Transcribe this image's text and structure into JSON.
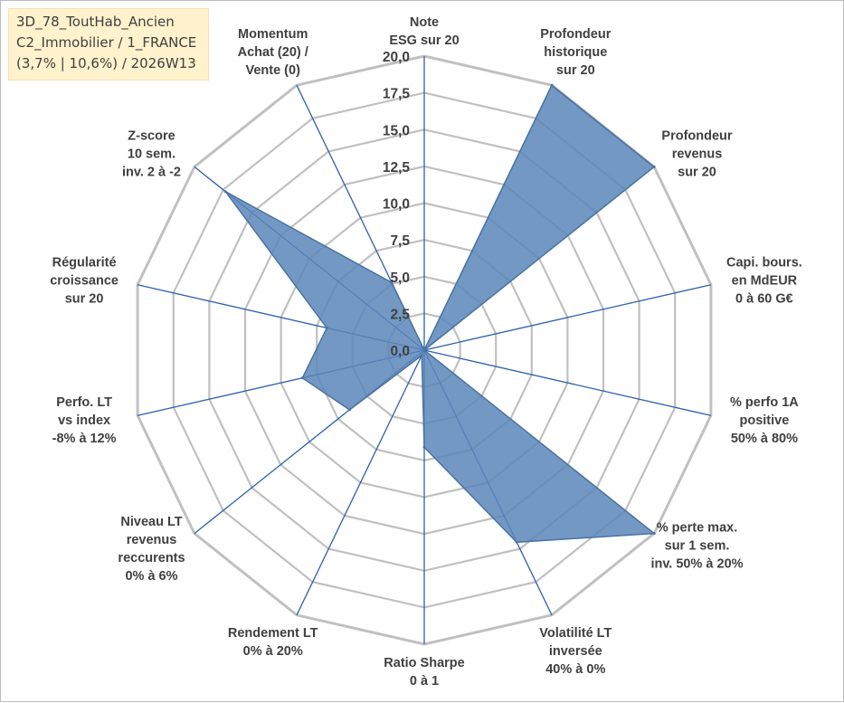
{
  "title_box": {
    "line1": "3D_78_ToutHab_Ancien",
    "line2": "C2_Immobilier / 1_FRANCE",
    "line3": "(3,7% | 10,6%) / 2026W13"
  },
  "chart_data": {
    "type": "radar",
    "rmin": 0,
    "rmax": 20,
    "ticks": [
      "0,0",
      "2,5",
      "5,0",
      "7,5",
      "10,0",
      "12,5",
      "15,0",
      "17,5",
      "20,0"
    ],
    "tick_values": [
      0,
      2.5,
      5,
      7.5,
      10,
      12.5,
      15,
      17.5,
      20
    ],
    "grid_steps": 8,
    "categories": [
      [
        "Note",
        "ESG sur 20"
      ],
      [
        "Profondeur",
        "historique",
        "sur 20"
      ],
      [
        "Profondeur",
        "revenus",
        "sur 20"
      ],
      [
        "Capi. bours.",
        "en MdEUR",
        "0 à 60 G€"
      ],
      [
        "% perfo 1A",
        "positive",
        "50% à 80%"
      ],
      [
        "% perte max.",
        "sur 1 sem.",
        "inv. 50% à 20%"
      ],
      [
        "Volatilité LT",
        "inversée",
        "40% à 0%"
      ],
      [
        "Ratio Sharpe",
        "0 à 1"
      ],
      [
        "Rendement LT",
        "0% à 20%"
      ],
      [
        "Niveau LT",
        "revenus",
        "reccurents",
        "0% à 6%"
      ],
      [
        "Perfo. LT",
        "vs index",
        "-8% à 12%"
      ],
      [
        "Régularité",
        "croissance",
        "sur 20"
      ],
      [
        "Z-score",
        "10 sem.",
        "inv. 2 à -2"
      ],
      [
        "Momentum",
        "Achat (20) /",
        "Vente (0)"
      ]
    ],
    "series": [
      {
        "name": "3D_78_ToutHab_Ancien",
        "values": [
          0,
          20,
          20,
          0,
          0,
          20,
          14.5,
          6.6,
          0.4,
          6.5,
          8.5,
          6.8,
          17.3,
          5.1
        ],
        "fill": "#5b86b8",
        "stroke": "#4a73a4"
      }
    ],
    "colors": {
      "grid": "#c0c0c0",
      "spoke": "#2f5fb0",
      "text": "#404040"
    }
  }
}
